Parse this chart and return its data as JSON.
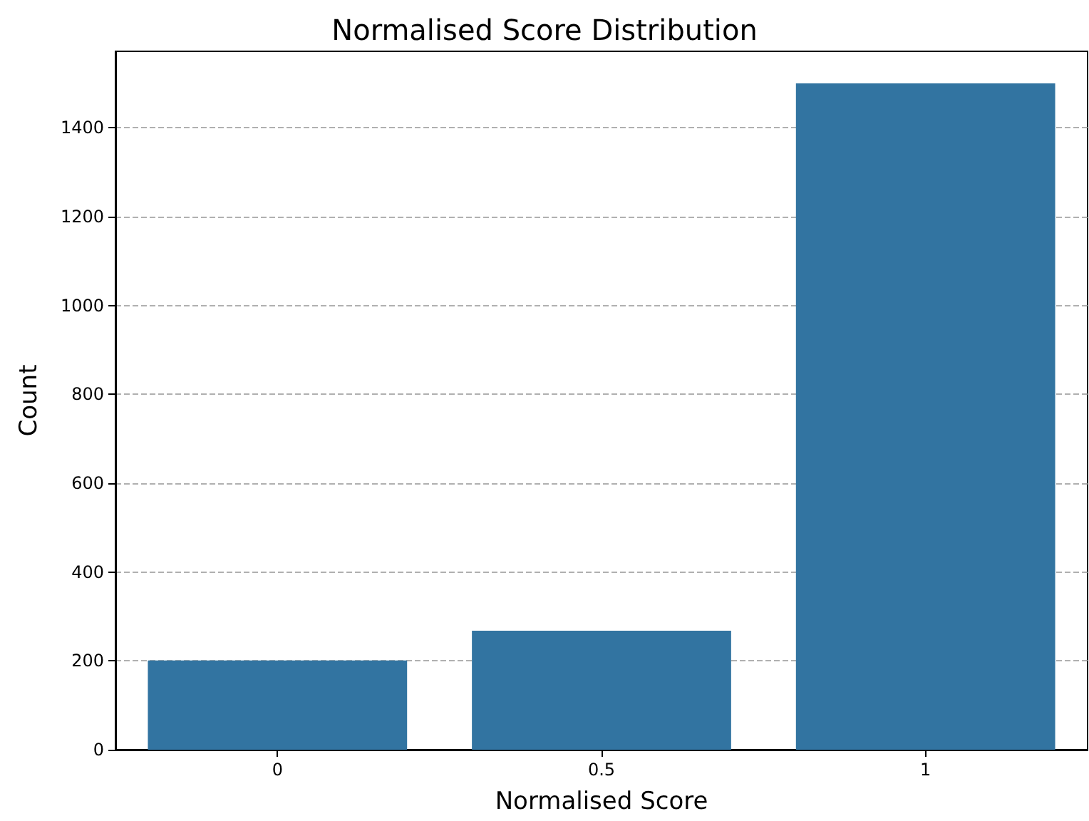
{
  "chart_data": {
    "type": "bar",
    "title": "Normalised Score Distribution",
    "xlabel": "Normalised Score",
    "ylabel": "Count",
    "categories": [
      "0",
      "0.5",
      "1"
    ],
    "values": [
      201,
      268,
      1500
    ],
    "color": "#3274a1",
    "ylim": [
      0,
      1572
    ],
    "yticks": [
      0,
      200,
      400,
      600,
      800,
      1000,
      1200,
      1400
    ],
    "grid": "y"
  }
}
